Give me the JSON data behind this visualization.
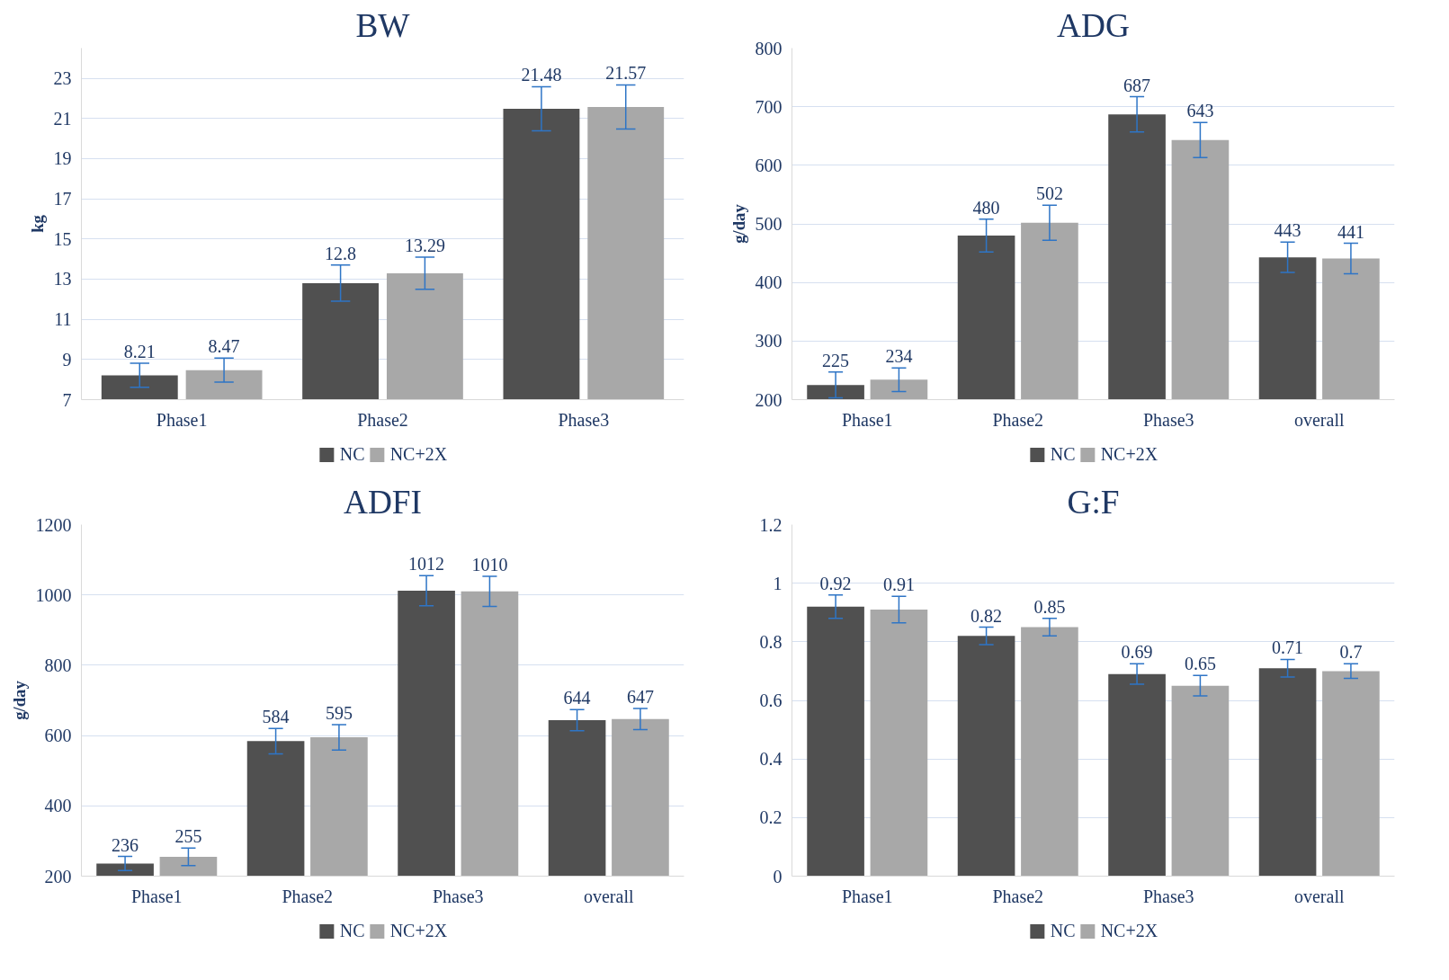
{
  "chart_data": [
    {
      "type": "bar",
      "title": "BW",
      "ylabel": "kg",
      "categories": [
        "Phase1",
        "Phase2",
        "Phase3"
      ],
      "ylim": [
        7,
        24.5
      ],
      "yticks": [
        7,
        9,
        11,
        13,
        15,
        17,
        19,
        21,
        23
      ],
      "grid": "y",
      "legend": "bottom",
      "data_labels": true,
      "series": [
        {
          "name": "NC",
          "color": "#505050",
          "values": [
            8.21,
            12.8,
            21.48
          ],
          "errors": [
            0.6,
            0.9,
            1.1
          ]
        },
        {
          "name": "NC+2X",
          "color": "#a8a8a8",
          "values": [
            8.47,
            13.29,
            21.57
          ],
          "errors": [
            0.6,
            0.8,
            1.1
          ]
        }
      ]
    },
    {
      "type": "bar",
      "title": "ADG",
      "ylabel": "g/day",
      "categories": [
        "Phase1",
        "Phase2",
        "Phase3",
        "overall"
      ],
      "ylim": [
        200,
        800
      ],
      "yticks": [
        200,
        300,
        400,
        500,
        600,
        700,
        800
      ],
      "grid": "y",
      "legend": "bottom",
      "data_labels": true,
      "series": [
        {
          "name": "NC",
          "color": "#505050",
          "values": [
            225,
            480,
            687,
            443
          ],
          "errors": [
            22,
            28,
            30,
            26
          ]
        },
        {
          "name": "NC+2X",
          "color": "#a8a8a8",
          "values": [
            234,
            502,
            643,
            441
          ],
          "errors": [
            20,
            30,
            30,
            26
          ]
        }
      ]
    },
    {
      "type": "bar",
      "title": "ADFI",
      "ylabel": "g/day",
      "categories": [
        "Phase1",
        "Phase2",
        "Phase3",
        "overall"
      ],
      "ylim": [
        200,
        1200
      ],
      "yticks": [
        200,
        400,
        600,
        800,
        1000,
        1200
      ],
      "grid": "y",
      "legend": "bottom",
      "data_labels": true,
      "series": [
        {
          "name": "NC",
          "color": "#505050",
          "values": [
            236,
            584,
            1012,
            644
          ],
          "errors": [
            20,
            36,
            43,
            30
          ]
        },
        {
          "name": "NC+2X",
          "color": "#a8a8a8",
          "values": [
            255,
            595,
            1010,
            647
          ],
          "errors": [
            25,
            36,
            43,
            30
          ]
        }
      ]
    },
    {
      "type": "bar",
      "title": "G:F",
      "categories": [
        "Phase1",
        "Phase2",
        "Phase3",
        "overall"
      ],
      "ylim": [
        0,
        1.2
      ],
      "yticks": [
        0,
        0.2,
        0.4,
        0.6,
        0.8,
        1,
        1.2
      ],
      "grid": "y",
      "legend": "bottom",
      "data_labels": true,
      "series": [
        {
          "name": "NC",
          "color": "#505050",
          "values": [
            0.92,
            0.82,
            0.69,
            0.71
          ],
          "errors": [
            0.04,
            0.03,
            0.035,
            0.03
          ]
        },
        {
          "name": "NC+2X",
          "color": "#a8a8a8",
          "values": [
            0.91,
            0.85,
            0.65,
            0.7
          ],
          "errors": [
            0.045,
            0.03,
            0.035,
            0.025
          ]
        }
      ]
    }
  ]
}
